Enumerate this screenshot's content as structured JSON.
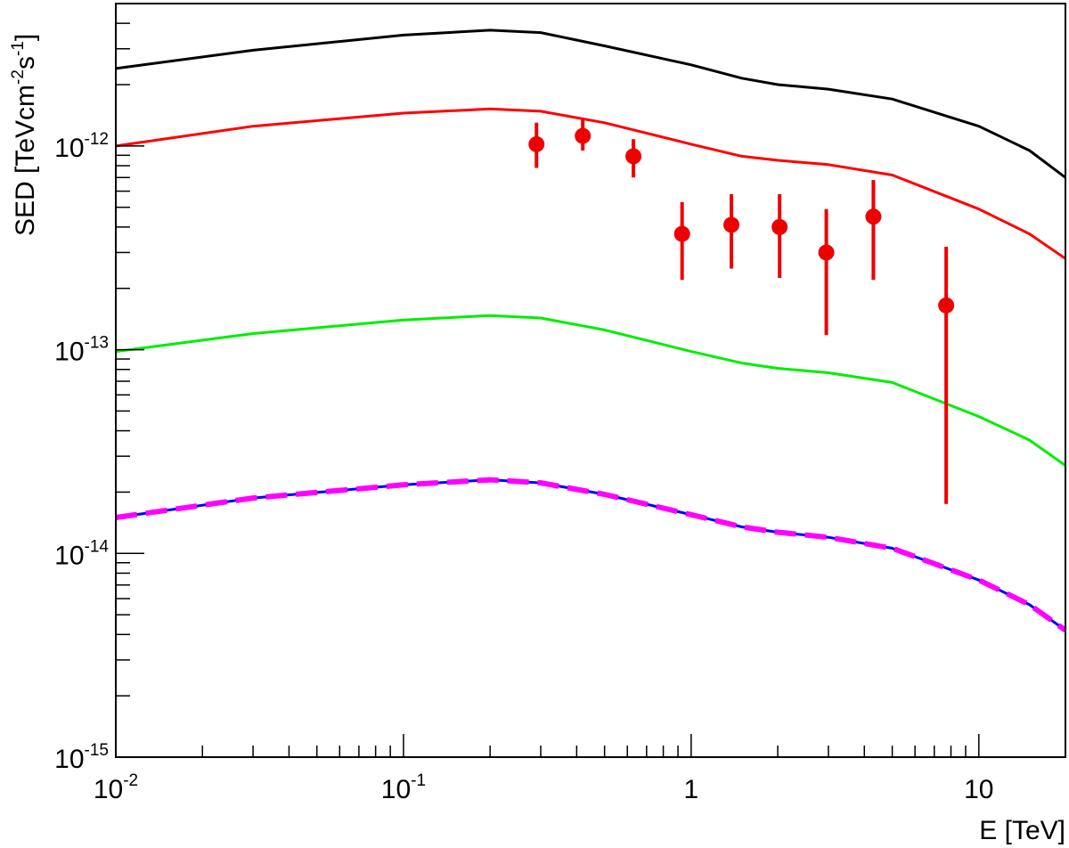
{
  "chart_data": {
    "type": "line",
    "title": "",
    "xlabel": "E [TeV]",
    "ylabel": "SED [TeVcm^-2s^-1]",
    "ylabel_parts": {
      "main": "SED [TeVcm",
      "exp1": "-2",
      "mid": "s",
      "exp2": "-1",
      "end": "]"
    },
    "xscale": "log",
    "yscale": "log",
    "xlim": [
      0.01,
      20
    ],
    "ylim": [
      1e-15,
      5e-12
    ],
    "grid": false,
    "x_tick_labels": [
      {
        "value": 0.01,
        "base": "10",
        "exp": "-2"
      },
      {
        "value": 0.1,
        "base": "10",
        "exp": "-1"
      },
      {
        "value": 1,
        "base": "1",
        "exp": ""
      },
      {
        "value": 10,
        "base": "10",
        "exp": ""
      }
    ],
    "y_tick_labels": [
      {
        "value": 1e-12,
        "base": "10",
        "exp": "-12"
      },
      {
        "value": 1e-13,
        "base": "10",
        "exp": "-13"
      },
      {
        "value": 1e-14,
        "base": "10",
        "exp": "-14"
      },
      {
        "value": 1e-15,
        "base": "10",
        "exp": "-15"
      }
    ],
    "series": [
      {
        "color": "#000000",
        "style": "solid",
        "x": [
          0.01,
          0.03,
          0.1,
          0.2,
          0.3,
          0.5,
          1,
          1.5,
          2,
          3,
          5,
          10,
          15,
          20
        ],
        "y": [
          2.4e-12,
          2.95e-12,
          3.5e-12,
          3.7e-12,
          3.6e-12,
          3.1e-12,
          2.5e-12,
          2.15e-12,
          2e-12,
          1.9e-12,
          1.7e-12,
          1.25e-12,
          9.5e-13,
          7e-13
        ]
      },
      {
        "color": "#ff0000",
        "style": "solid",
        "x": [
          0.01,
          0.03,
          0.1,
          0.2,
          0.3,
          0.5,
          1,
          1.5,
          2,
          3,
          5,
          10,
          15,
          20
        ],
        "y": [
          1e-12,
          1.25e-12,
          1.45e-12,
          1.52e-12,
          1.48e-12,
          1.3e-12,
          1.02e-12,
          8.9e-13,
          8.5e-13,
          8.1e-13,
          7.2e-13,
          4.9e-13,
          3.7e-13,
          2.8e-13
        ]
      },
      {
        "color": "#00ee00",
        "style": "solid",
        "x": [
          0.01,
          0.03,
          0.1,
          0.2,
          0.3,
          0.5,
          1,
          1.5,
          2,
          3,
          5,
          10,
          15,
          20
        ],
        "y": [
          9.8e-14,
          1.2e-13,
          1.4e-13,
          1.47e-13,
          1.43e-13,
          1.25e-13,
          9.8e-14,
          8.6e-14,
          8.1e-14,
          7.7e-14,
          6.9e-14,
          4.7e-14,
          3.6e-14,
          2.7e-14
        ]
      },
      {
        "color": "#0000ff",
        "style": "solid",
        "x": [
          0.01,
          0.03,
          0.1,
          0.2,
          0.3,
          0.5,
          1,
          1.5,
          2,
          3,
          5,
          10,
          15,
          20
        ],
        "y": [
          1.5e-14,
          1.87e-14,
          2.17e-14,
          2.3e-14,
          2.22e-14,
          1.95e-14,
          1.55e-14,
          1.35e-14,
          1.27e-14,
          1.2e-14,
          1.06e-14,
          7.4e-15,
          5.6e-15,
          4.2e-15
        ]
      },
      {
        "color": "#ff00ff",
        "style": "dashed",
        "x": [
          0.01,
          0.03,
          0.1,
          0.2,
          0.3,
          0.5,
          1,
          1.5,
          2,
          3,
          5,
          10,
          15,
          20
        ],
        "y": [
          1.5e-14,
          1.87e-14,
          2.17e-14,
          2.3e-14,
          2.22e-14,
          1.95e-14,
          1.55e-14,
          1.35e-14,
          1.27e-14,
          1.2e-14,
          1.06e-14,
          7.4e-15,
          5.6e-15,
          4.2e-15
        ]
      }
    ],
    "points": {
      "color": "#ee0000",
      "x": [
        0.29,
        0.42,
        0.63,
        0.93,
        1.38,
        2.03,
        2.95,
        4.3,
        7.7
      ],
      "y": [
        1.02e-12,
        1.12e-12,
        8.9e-13,
        3.7e-13,
        4.1e-13,
        4e-13,
        3e-13,
        4.5e-13,
        1.65e-13
      ],
      "y_low": [
        7.8e-13,
        9.5e-13,
        7e-13,
        2.2e-13,
        2.5e-13,
        2.25e-13,
        1.18e-13,
        2.2e-13,
        1.75e-14
      ],
      "y_high": [
        1.3e-12,
        1.35e-12,
        1.08e-12,
        5.3e-13,
        5.8e-13,
        5.8e-13,
        4.9e-13,
        6.8e-13,
        3.2e-13
      ]
    }
  }
}
